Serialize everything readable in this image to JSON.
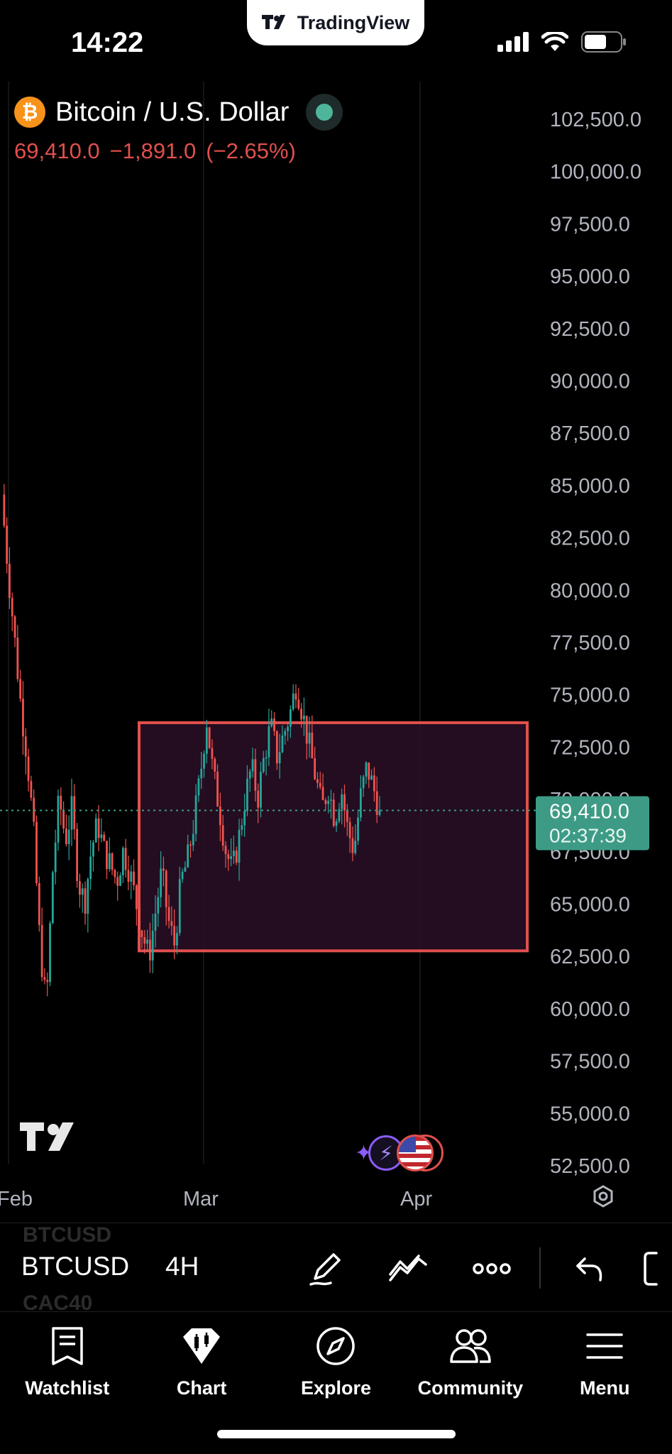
{
  "status_bar": {
    "time": "14:22",
    "brand": "TradingView"
  },
  "symbol": {
    "name": "Bitcoin / U.S. Dollar",
    "coin_glyph": "₿",
    "last": "69,410.0",
    "change": "−1,891.0",
    "change_pct": "(−2.65%)",
    "change_color": "#e0504d",
    "market_status_color": "#4fb59a"
  },
  "price_tag": {
    "price": "69,410.0",
    "countdown": "02:37:39",
    "color": "#3d9b85"
  },
  "chart_data": {
    "type": "candlestick",
    "interval": "4H",
    "x_tick_labels": [
      "Feb",
      "Mar",
      "Apr"
    ],
    "y_tick_labels": [
      "102,500.0",
      "100,000.0",
      "97,500.0",
      "95,000.0",
      "92,500.0",
      "90,000.0",
      "87,500.0",
      "85,000.0",
      "82,500.0",
      "80,000.0",
      "77,500.0",
      "75,000.0",
      "72,500.0",
      "70,000.0",
      "67,500.0",
      "65,000.0",
      "62,500.0",
      "60,000.0",
      "57,500.0",
      "55,000.0",
      "52,500.0"
    ],
    "ylim": [
      52500,
      102500
    ],
    "last_price": 69410.0,
    "up_color": "#26a69a",
    "down_color": "#ef5350",
    "price_path": [
      84500,
      81000,
      77800,
      74500,
      72000,
      68500,
      63000,
      60000,
      66500,
      70000,
      68000,
      69500,
      66000,
      65000,
      67500,
      68800,
      67500,
      66800,
      66000,
      67500,
      66500,
      65000,
      63500,
      62400,
      64500,
      66500,
      64200,
      63000,
      66000,
      67000,
      68800,
      71000,
      73800,
      71200,
      69500,
      67500,
      66500,
      68000,
      70000,
      71500,
      70000,
      72000,
      73500,
      72000,
      73000,
      74000,
      75500,
      74000,
      72500,
      71000,
      69500,
      70500,
      69000,
      70500,
      68500,
      67500,
      70000,
      71500,
      70500,
      69410
    ],
    "rectangle": {
      "price_top": 73600,
      "price_bottom": 62700,
      "border_color": "#e0504d",
      "fill_color": "#2a0f26"
    }
  },
  "toolbar": {
    "symbol": "BTCUSD",
    "interval": "4H",
    "ghost_prev": "BTCUSD",
    "ghost_next": "CAC40"
  },
  "bottom_nav": [
    {
      "label": "Watchlist",
      "icon": "watchlist-icon"
    },
    {
      "label": "Chart",
      "icon": "chart-icon"
    },
    {
      "label": "Explore",
      "icon": "compass-icon"
    },
    {
      "label": "Community",
      "icon": "community-icon"
    },
    {
      "label": "Menu",
      "icon": "menu-icon"
    }
  ]
}
